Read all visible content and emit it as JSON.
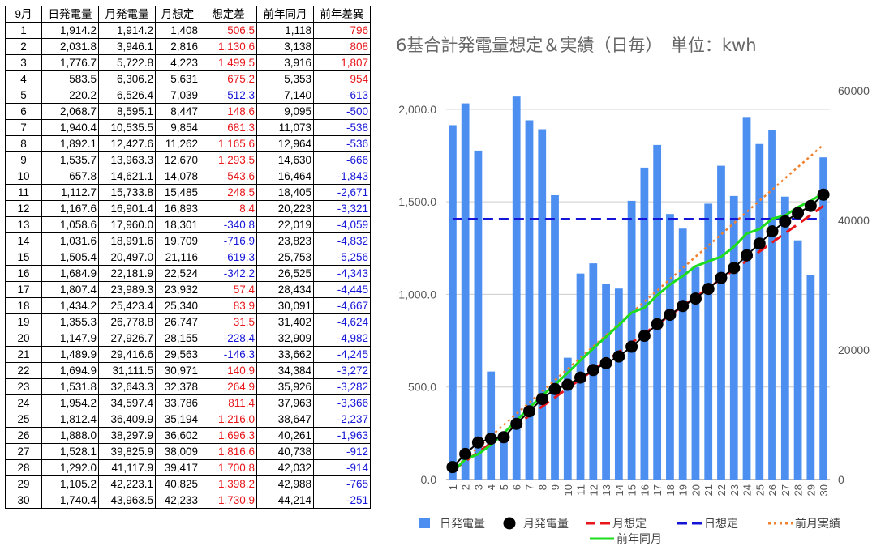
{
  "table": {
    "headers": [
      "9月",
      "日発電量",
      "月発電量",
      "月想定",
      "想定差",
      "前年同月",
      "前年差異"
    ],
    "rows": [
      [
        "1",
        "1,914.2",
        "1,914.2",
        "1,408",
        "506.5",
        "1,118",
        "796"
      ],
      [
        "2",
        "2,031.8",
        "3,946.1",
        "2,816",
        "1,130.6",
        "3,138",
        "808"
      ],
      [
        "3",
        "1,776.7",
        "5,722.8",
        "4,223",
        "1,499.5",
        "3,916",
        "1,807"
      ],
      [
        "4",
        "583.5",
        "6,306.2",
        "5,631",
        "675.2",
        "5,353",
        "954"
      ],
      [
        "5",
        "220.2",
        "6,526.4",
        "7,039",
        "-512.3",
        "7,140",
        "-613"
      ],
      [
        "6",
        "2,068.7",
        "8,595.1",
        "8,447",
        "148.6",
        "9,095",
        "-500"
      ],
      [
        "7",
        "1,940.4",
        "10,535.5",
        "9,854",
        "681.3",
        "11,073",
        "-538"
      ],
      [
        "8",
        "1,892.1",
        "12,427.6",
        "11,262",
        "1,165.6",
        "12,964",
        "-536"
      ],
      [
        "9",
        "1,535.7",
        "13,963.3",
        "12,670",
        "1,293.5",
        "14,630",
        "-666"
      ],
      [
        "10",
        "657.8",
        "14,621.1",
        "14,078",
        "543.6",
        "16,464",
        "-1,843"
      ],
      [
        "11",
        "1,112.7",
        "15,733.8",
        "15,485",
        "248.5",
        "18,405",
        "-2,671"
      ],
      [
        "12",
        "1,167.6",
        "16,901.4",
        "16,893",
        "8.4",
        "20,223",
        "-3,321"
      ],
      [
        "13",
        "1,058.6",
        "17,960.0",
        "18,301",
        "-340.8",
        "22,019",
        "-4,059"
      ],
      [
        "14",
        "1,031.6",
        "18,991.6",
        "19,709",
        "-716.9",
        "23,823",
        "-4,832"
      ],
      [
        "15",
        "1,505.4",
        "20,497.0",
        "21,116",
        "-619.3",
        "25,753",
        "-5,256"
      ],
      [
        "16",
        "1,684.9",
        "22,181.9",
        "22,524",
        "-342.2",
        "26,525",
        "-4,343"
      ],
      [
        "17",
        "1,807.4",
        "23,989.3",
        "23,932",
        "57.4",
        "28,434",
        "-4,445"
      ],
      [
        "18",
        "1,434.2",
        "25,423.4",
        "25,340",
        "83.9",
        "30,091",
        "-4,667"
      ],
      [
        "19",
        "1,355.3",
        "26,778.8",
        "26,747",
        "31.5",
        "31,402",
        "-4,624"
      ],
      [
        "20",
        "1,147.9",
        "27,926.7",
        "28,155",
        "-228.4",
        "32,909",
        "-4,982"
      ],
      [
        "21",
        "1,489.9",
        "29,416.6",
        "29,563",
        "-146.3",
        "33,662",
        "-4,245"
      ],
      [
        "22",
        "1,694.9",
        "31,111.5",
        "30,971",
        "140.9",
        "34,384",
        "-3,272"
      ],
      [
        "23",
        "1,531.8",
        "32,643.3",
        "32,378",
        "264.9",
        "35,926",
        "-3,282"
      ],
      [
        "24",
        "1,954.2",
        "34,597.4",
        "33,786",
        "811.4",
        "37,963",
        "-3,366"
      ],
      [
        "25",
        "1,812.4",
        "36,409.9",
        "35,194",
        "1,216.0",
        "38,647",
        "-2,237"
      ],
      [
        "26",
        "1,888.0",
        "38,297.9",
        "36,602",
        "1,696.3",
        "40,261",
        "-1,963"
      ],
      [
        "27",
        "1,528.1",
        "39,825.9",
        "38,009",
        "1,816.6",
        "40,738",
        "-912"
      ],
      [
        "28",
        "1,292.0",
        "41,117.9",
        "39,417",
        "1,700.8",
        "42,032",
        "-914"
      ],
      [
        "29",
        "1,105.2",
        "42,223.1",
        "40,825",
        "1,398.2",
        "42,988",
        "-765"
      ],
      [
        "30",
        "1,740.4",
        "43,963.5",
        "42,233",
        "1,730.9",
        "44,214",
        "-251"
      ]
    ]
  },
  "chart_data": {
    "type": "bar",
    "title": "6基合計発電量想定＆実績（日毎）　単位：kwh",
    "x": [
      "1",
      "2",
      "3",
      "4",
      "5",
      "6",
      "7",
      "8",
      "9",
      "10",
      "11",
      "12",
      "13",
      "14",
      "15",
      "16",
      "17",
      "18",
      "19",
      "20",
      "21",
      "22",
      "23",
      "24",
      "25",
      "26",
      "27",
      "28",
      "29",
      "30"
    ],
    "y_left": {
      "ticks": [
        "0.0",
        "500.0",
        "1,000.0",
        "1,500.0",
        "2,000.0"
      ],
      "ylim": [
        0,
        2100
      ]
    },
    "y_right": {
      "ticks": [
        "0",
        "20000",
        "40000",
        "60000"
      ],
      "ylim": [
        0,
        60000
      ]
    },
    "grid": true,
    "legend_position": "bottom",
    "series": [
      {
        "name": "日発電量",
        "type": "bar",
        "axis": "left",
        "color": "#4d8ff0",
        "values": [
          1914.2,
          2031.8,
          1776.7,
          583.5,
          220.2,
          2068.7,
          1940.4,
          1892.1,
          1535.7,
          657.8,
          1112.7,
          1167.6,
          1058.6,
          1031.6,
          1505.4,
          1684.9,
          1807.4,
          1434.2,
          1355.3,
          1147.9,
          1489.9,
          1694.9,
          1531.8,
          1954.2,
          1812.4,
          1888.0,
          1528.1,
          1292.0,
          1105.2,
          1740.4
        ]
      },
      {
        "name": "月発電量",
        "type": "line-marker",
        "axis": "right",
        "color": "#000000",
        "values": [
          1914.2,
          3946.1,
          5722.8,
          6306.2,
          6526.4,
          8595.1,
          10535.5,
          12427.6,
          13963.3,
          14621.1,
          15733.8,
          16901.4,
          17960.0,
          18991.6,
          20497.0,
          22181.9,
          23989.3,
          25423.4,
          26778.8,
          27926.7,
          29416.6,
          31111.5,
          32643.3,
          34597.4,
          36409.9,
          38297.9,
          39825.9,
          41117.9,
          42223.1,
          43963.5
        ]
      },
      {
        "name": "月想定",
        "type": "dashed-line",
        "axis": "right",
        "color": "#e8161a",
        "values": [
          1408,
          2816,
          4223,
          5631,
          7039,
          8447,
          9854,
          11262,
          12670,
          14078,
          15485,
          16893,
          18301,
          19709,
          21116,
          22524,
          23932,
          25340,
          26747,
          28155,
          29563,
          30971,
          32378,
          33786,
          35194,
          36602,
          38009,
          39417,
          40825,
          42233
        ]
      },
      {
        "name": "日想定",
        "type": "dashed-line",
        "axis": "left",
        "color": "#1515d8",
        "values": [
          1408,
          1408,
          1408,
          1408,
          1408,
          1408,
          1408,
          1408,
          1408,
          1408,
          1408,
          1408,
          1408,
          1408,
          1408,
          1408,
          1408,
          1408,
          1408,
          1408,
          1408,
          1408,
          1408,
          1408,
          1408,
          1408,
          1408,
          1408,
          1408,
          1408
        ]
      },
      {
        "name": "前月実績",
        "type": "dotted-line",
        "axis": "right",
        "color": "#f0812f",
        "values": [
          1500,
          3230,
          4960,
          6690,
          8420,
          10150,
          11880,
          13610,
          15340,
          17070,
          18800,
          20530,
          22260,
          23990,
          25720,
          27450,
          29180,
          30910,
          32640,
          34370,
          36100,
          37830,
          39560,
          41290,
          43020,
          44750,
          46480,
          48210,
          49940,
          51670
        ]
      },
      {
        "name": "前年同月",
        "type": "line",
        "axis": "right",
        "color": "#1edc1e",
        "values": [
          1118,
          3138,
          3916,
          5353,
          7140,
          9095,
          11073,
          12964,
          14630,
          16464,
          18405,
          20223,
          22019,
          23823,
          25753,
          26525,
          28434,
          30091,
          31402,
          32909,
          33662,
          34384,
          35926,
          37963,
          38647,
          40261,
          40738,
          42032,
          42988,
          44214
        ]
      }
    ]
  }
}
